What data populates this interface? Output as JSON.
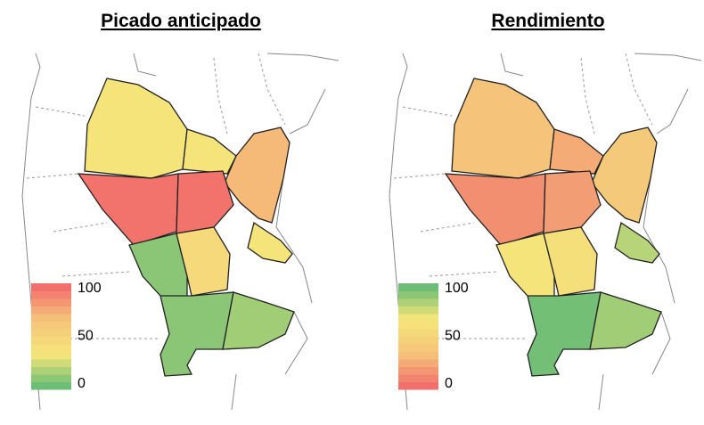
{
  "maps": [
    {
      "title": "Picado anticipado",
      "colorscale": [
        "#5cb874",
        "#f5e67a",
        "#f5c27a",
        "#f0656a"
      ],
      "legend_range": [
        0,
        100
      ],
      "legend_ticks": [
        100,
        50,
        0
      ],
      "region_values": [
        35,
        35,
        70,
        95,
        95,
        35,
        10,
        45,
        10,
        15
      ]
    },
    {
      "title": "Rendimiento",
      "colorscale": [
        "#f0656a",
        "#f5c27a",
        "#f5e67a",
        "#5cb874"
      ],
      "legend_range": [
        0,
        100
      ],
      "legend_ticks": [
        100,
        50,
        0
      ],
      "region_values": [
        35,
        25,
        40,
        15,
        20,
        80,
        65,
        60,
        95,
        85
      ]
    }
  ]
}
